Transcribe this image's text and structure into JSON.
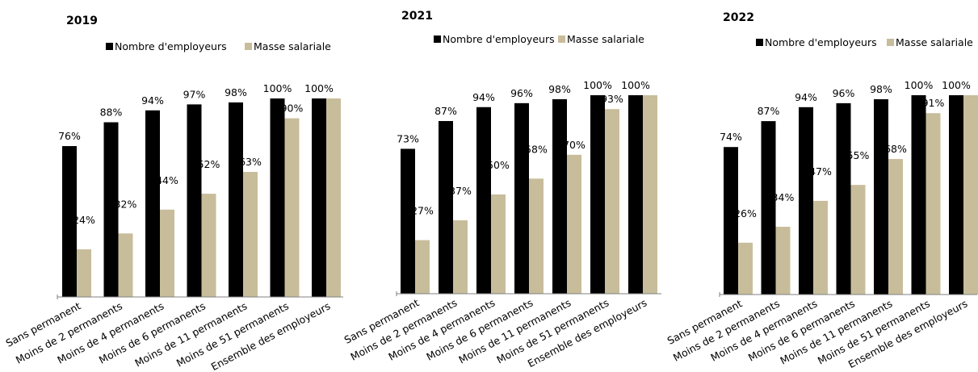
{
  "colors": {
    "employeurs": "#000000",
    "masse": "#c8bd9b",
    "axis": "#808080"
  },
  "chart_data": [
    {
      "type": "bar",
      "title": "2019",
      "categories": [
        "Sans permanent",
        "Moins de 2 permanents",
        "Moins de 4 permanents",
        "Moins de 6 permanents",
        "Moins de 11 permanents",
        "Moins de 51 permanents",
        "Ensemble des employeurs"
      ],
      "series": [
        {
          "name": "Nombre d'employeurs",
          "values": [
            76,
            88,
            94,
            97,
            98,
            100,
            100
          ],
          "labels": [
            "76%",
            "88%",
            "94%",
            "97%",
            "98%",
            "100%",
            "100%"
          ]
        },
        {
          "name": "Masse salariale",
          "values": [
            24,
            32,
            44,
            52,
            63,
            90,
            100
          ],
          "labels": [
            "24%",
            "32%",
            "44%",
            "52%",
            "63%",
            "90%",
            ""
          ]
        }
      ],
      "ylim": [
        0,
        100
      ],
      "legend": "top"
    },
    {
      "type": "bar",
      "title": "2021",
      "categories": [
        "Sans permanent",
        "Moins de 2 permanents",
        "Moins de 4 permanents",
        "Moins de 6 permanents",
        "Moins de 11 permanents",
        "Moins de 51 permanents",
        "Ensemble des employeurs"
      ],
      "series": [
        {
          "name": "Nombre d'employeurs",
          "values": [
            73,
            87,
            94,
            96,
            98,
            100,
            100
          ],
          "labels": [
            "73%",
            "87%",
            "94%",
            "96%",
            "98%",
            "100%",
            "100%"
          ]
        },
        {
          "name": "Masse salariale",
          "values": [
            27,
            37,
            50,
            58,
            70,
            93,
            100
          ],
          "labels": [
            "27%",
            "37%",
            "50%",
            "58%",
            "70%",
            "93%",
            ""
          ]
        }
      ],
      "ylim": [
        0,
        100
      ],
      "legend": "top"
    },
    {
      "type": "bar",
      "title": "2022",
      "categories": [
        "Sans permanent",
        "Moins de 2 permanents",
        "Moins de 4 permanents",
        "Moins de 6 permanents",
        "Moins de 11 permanents",
        "Moins de 51 permanents",
        "Ensemble des employeurs"
      ],
      "series": [
        {
          "name": "Nombre d'employeurs",
          "values": [
            74,
            87,
            94,
            96,
            98,
            100,
            100
          ],
          "labels": [
            "74%",
            "87%",
            "94%",
            "96%",
            "98%",
            "100%",
            "100%"
          ]
        },
        {
          "name": "Masse salariale",
          "values": [
            26,
            34,
            47,
            55,
            68,
            91,
            100
          ],
          "labels": [
            "26%",
            "34%",
            "47%",
            "55%",
            "68%",
            "91%",
            ""
          ]
        }
      ],
      "ylim": [
        0,
        100
      ],
      "legend": "top"
    }
  ]
}
